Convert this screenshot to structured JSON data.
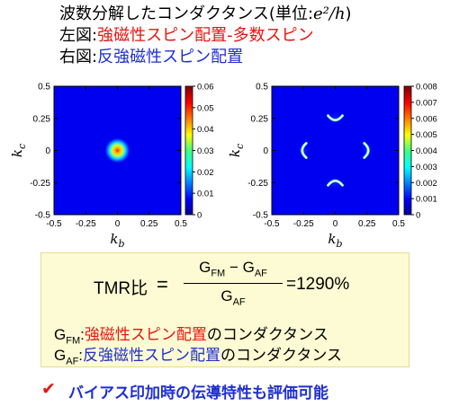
{
  "title": {
    "line1_prefix": "波数分解したコンダクタンス(単位:",
    "line1_unit": "e²/h",
    "line1_suffix": ")",
    "line2_prefix": "左図:",
    "line2_highlight": "強磁性スピン配置-多数スピン",
    "line3_prefix": "右図:",
    "line3_highlight": "反強磁性スピン配置"
  },
  "colors": {
    "red": "#e8140f",
    "blue": "#1e2fd0"
  },
  "chart_data": [
    {
      "type": "heatmap",
      "xlabel": "k_b",
      "ylabel": "k_c",
      "xlim": [
        -0.5,
        0.5
      ],
      "ylim": [
        -0.5,
        0.5
      ],
      "xticks": [
        "-0.5",
        "-0.25",
        "0",
        "0.25",
        "0.5"
      ],
      "yticks": [
        "0.5",
        "0.25",
        "0",
        "-0.25",
        "-0.5"
      ],
      "colorbar": {
        "min": 0,
        "max": 0.06,
        "ticks": [
          "0.06",
          "0.05",
          "0.04",
          "0.03",
          "0.02",
          "0.01",
          "0"
        ]
      },
      "features": [
        {
          "shape": "peak",
          "kb": 0.0,
          "kc": 0.0,
          "value": 0.06
        }
      ]
    },
    {
      "type": "heatmap",
      "xlabel": "k_b",
      "ylabel": "k_c",
      "xlim": [
        -0.5,
        0.5
      ],
      "ylim": [
        -0.5,
        0.5
      ],
      "xticks": [
        "-0.5",
        "-0.25",
        "0",
        "0.25",
        "0.5"
      ],
      "yticks": [
        "0.5",
        "0.25",
        "0",
        "-0.25",
        "-0.5"
      ],
      "colorbar": {
        "min": 0,
        "max": 0.008,
        "ticks": [
          "0.008",
          "0.007",
          "0.006",
          "0.005",
          "0.004",
          "0.003",
          "0.002",
          "0.001",
          "0"
        ]
      },
      "features": [
        {
          "shape": "arc",
          "kb": 0.0,
          "kc": 0.25,
          "value": 0.008
        },
        {
          "shape": "arc",
          "kb": 0.0,
          "kc": -0.25,
          "value": 0.008
        },
        {
          "shape": "arc",
          "kb": -0.25,
          "kc": 0.0,
          "value": 0.008
        },
        {
          "shape": "arc",
          "kb": 0.25,
          "kc": 0.0,
          "value": 0.008
        }
      ]
    }
  ],
  "formula": {
    "tmr_label": "TMR比",
    "eq": "=",
    "numerator": "G_FM − G_AF",
    "denominator": "G_AF",
    "result": "=1290%",
    "g_letter": "G",
    "fm_sub": "FM",
    "af_sub": "AF",
    "minus": " − ",
    "fm_colon": ":",
    "fm_highlight": "強磁性スピン配置",
    "fm_suffix": "のコンダクタンス",
    "af_colon": ":",
    "af_highlight": "反強磁性スピン配置",
    "af_suffix": "のコンダクタンス"
  },
  "bottom": {
    "check": "✔",
    "text": "バイアス印加時の伝導特性も評価可能"
  }
}
